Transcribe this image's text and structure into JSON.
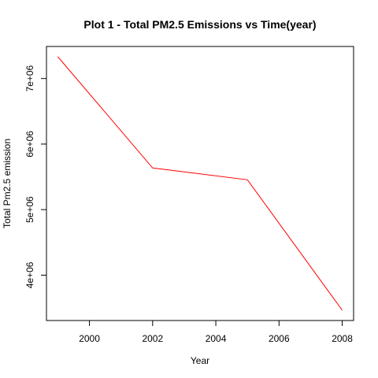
{
  "chart_data": {
    "type": "line",
    "title": "Plot 1 - Total PM2.5 Emissions vs Time(year)",
    "xlabel": "Year",
    "ylabel": "Total Pm2.5 emission",
    "x": [
      1999,
      2002,
      2005,
      2008
    ],
    "series": [
      {
        "values": [
          7332967,
          5635780,
          5454703,
          3464206
        ],
        "color": "#ff0000"
      }
    ],
    "xlim": [
      1998.64,
      2008.36
    ],
    "ylim": [
      3308094,
      7489079
    ],
    "xticks": [
      2000,
      2002,
      2004,
      2006,
      2008
    ],
    "xtick_labels": [
      "2000",
      "2002",
      "2004",
      "2006",
      "2008"
    ],
    "yticks": [
      4000000,
      5000000,
      6000000,
      7000000
    ],
    "ytick_labels": [
      "4e+06",
      "5e+06",
      "6e+06",
      "7e+06"
    ],
    "grid": false,
    "legend": "none"
  }
}
